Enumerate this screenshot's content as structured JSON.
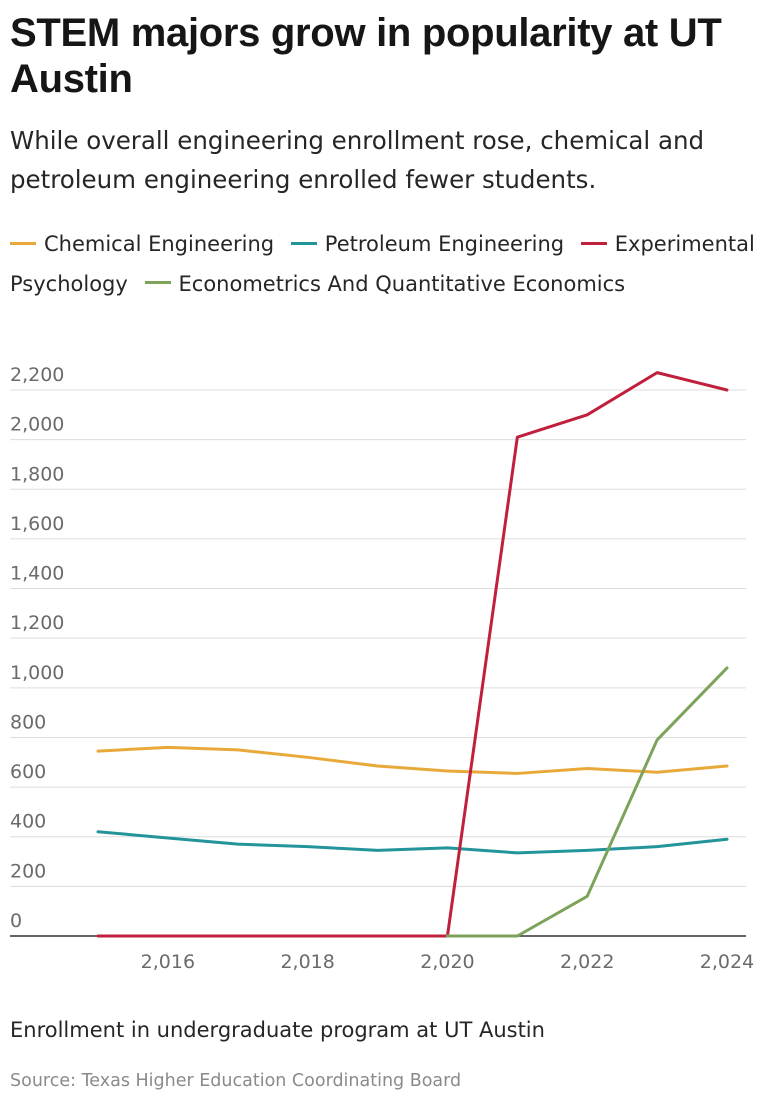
{
  "header": {
    "title": "STEM majors grow in popularity at UT Austin",
    "subtitle": "While overall engineering enrollment rose, chemical and petroleum engineering enrolled fewer students."
  },
  "footer": {
    "caption": "Enrollment in undergraduate program at UT Austin",
    "source": "Source: Texas Higher Education Coordinating Board"
  },
  "chart_data": {
    "type": "line",
    "title": "STEM majors grow in popularity at UT Austin",
    "subtitle": "While overall engineering enrollment rose, chemical and petroleum engineering enrolled fewer students.",
    "xlabel": "",
    "ylabel": "",
    "x": [
      2015,
      2016,
      2017,
      2018,
      2019,
      2020,
      2021,
      2022,
      2023,
      2024
    ],
    "xlim": [
      2015,
      2024
    ],
    "ylim": [
      0,
      2200
    ],
    "xticks": [
      "2,016",
      "2,018",
      "2,020",
      "2,022",
      "2,024"
    ],
    "xtick_values": [
      2016,
      2018,
      2020,
      2022,
      2024
    ],
    "yticks": [
      "0",
      "200",
      "400",
      "600",
      "800",
      "1,000",
      "1,200",
      "1,400",
      "1,600",
      "1,800",
      "2,000",
      "2,200"
    ],
    "ytick_values": [
      0,
      200,
      400,
      600,
      800,
      1000,
      1200,
      1400,
      1600,
      1800,
      2000,
      2200
    ],
    "grid": true,
    "legend_position": "top",
    "series": [
      {
        "name": "Chemical Engineering",
        "color": "#e8a93a",
        "values": [
          745,
          760,
          750,
          720,
          685,
          665,
          655,
          675,
          660,
          685
        ]
      },
      {
        "name": "Petroleum Engineering",
        "color": "#23949a",
        "values": [
          420,
          395,
          370,
          360,
          345,
          355,
          335,
          345,
          360,
          390
        ]
      },
      {
        "name": "Experimental Psychology",
        "color": "#c0203c",
        "values": [
          0,
          0,
          0,
          0,
          0,
          0,
          2010,
          2100,
          2270,
          2200
        ]
      },
      {
        "name": "Econometrics And Quantitative Economics",
        "color": "#7da35a",
        "values": [
          null,
          null,
          null,
          null,
          null,
          0,
          0,
          160,
          790,
          1080
        ]
      }
    ]
  }
}
